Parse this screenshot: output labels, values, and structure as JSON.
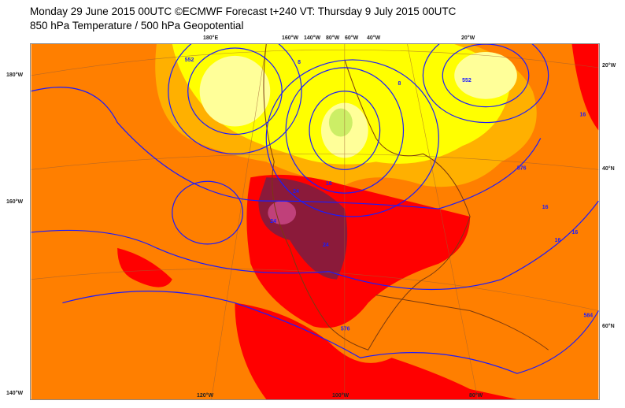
{
  "title": "Monday 29 June 2015 00UTC ©ECMWF Forecast t+240 VT: Thursday 9 July 2015 00UTC",
  "subtitle": "850 hPa Temperature / 500 hPa Geopotential",
  "top_labels": [
    "180°E",
    "160°W",
    "140°W",
    "80°W",
    "60°W",
    "40°W",
    "20°W"
  ],
  "left_labels": [
    "180°W",
    "160°W",
    "140°W"
  ],
  "right_labels": [
    "20°W",
    "40°N",
    "60°N"
  ],
  "bottom_labels": [
    "120°W",
    "100°W",
    "80°W"
  ],
  "contour_labels": [
    "16",
    "16",
    "16",
    "16",
    "24",
    "24",
    "24",
    "16",
    "8",
    "8",
    "576",
    "552",
    "552",
    "576",
    "584"
  ],
  "colors": {
    "warm": "#ff7f00",
    "hot": "#ff0000",
    "very_hot": "#8b1a3a",
    "extreme": "#c0407a",
    "mild": "#ffb000",
    "cool": "#ffff00",
    "cold": "#ffff99",
    "geopotential": "#1a1aff",
    "coast": "#7a3a10"
  }
}
